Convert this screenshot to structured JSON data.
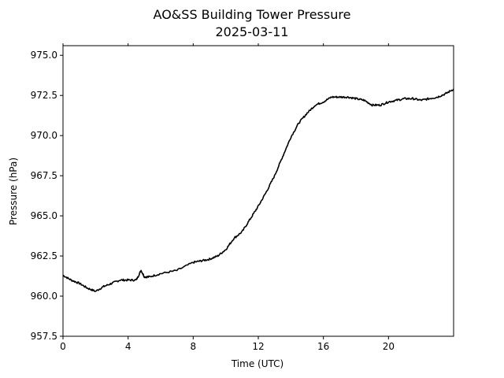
{
  "chart_data": {
    "type": "line",
    "title": "AO&SS Building Tower Pressure",
    "subtitle": "2025-03-11",
    "xlabel": "Time (UTC)",
    "ylabel": "Pressure (hPa)",
    "xlim": [
      0,
      24
    ],
    "ylim": [
      957.5,
      975.6
    ],
    "x_ticks": [
      0,
      4,
      8,
      12,
      16,
      20
    ],
    "x_tick_labels": [
      "0",
      "4",
      "8",
      "12",
      "16",
      "20"
    ],
    "y_ticks": [
      957.5,
      960.0,
      962.5,
      965.0,
      967.5,
      970.0,
      972.5,
      975.0
    ],
    "y_tick_labels": [
      "957.5",
      "960.0",
      "962.5",
      "965.0",
      "967.5",
      "970.0",
      "972.5",
      "975.0"
    ],
    "grid": false,
    "line_color": "#000000",
    "series": [
      {
        "x": [
          0,
          0.5,
          1.0,
          1.5,
          2.0,
          2.5,
          3.0,
          3.5,
          4.0,
          4.5,
          4.8,
          5.0,
          5.3,
          6.0,
          7.0,
          8.0,
          8.5,
          9.0,
          9.5,
          10.0,
          10.5,
          11.0,
          11.5,
          12.0,
          12.5,
          13.0,
          13.5,
          14.0,
          14.5,
          15.0,
          15.5,
          16.0,
          16.5,
          17.0,
          17.5,
          18.0,
          18.5,
          19.0,
          19.5,
          20.0,
          20.5,
          21.0,
          21.5,
          22.0,
          22.5,
          23.0,
          23.5,
          24.0
        ],
        "y": [
          961.3,
          961.0,
          960.8,
          960.5,
          960.3,
          960.6,
          960.8,
          961.0,
          961.0,
          961.0,
          961.6,
          961.2,
          961.2,
          961.4,
          961.6,
          962.1,
          962.2,
          962.3,
          962.5,
          962.9,
          963.6,
          964.0,
          964.8,
          965.6,
          966.5,
          967.5,
          968.7,
          969.9,
          970.8,
          971.4,
          971.9,
          972.1,
          972.4,
          972.4,
          972.4,
          972.3,
          972.2,
          971.9,
          971.9,
          972.1,
          972.2,
          972.3,
          972.3,
          972.2,
          972.3,
          972.4,
          972.6,
          972.9
        ]
      }
    ]
  }
}
